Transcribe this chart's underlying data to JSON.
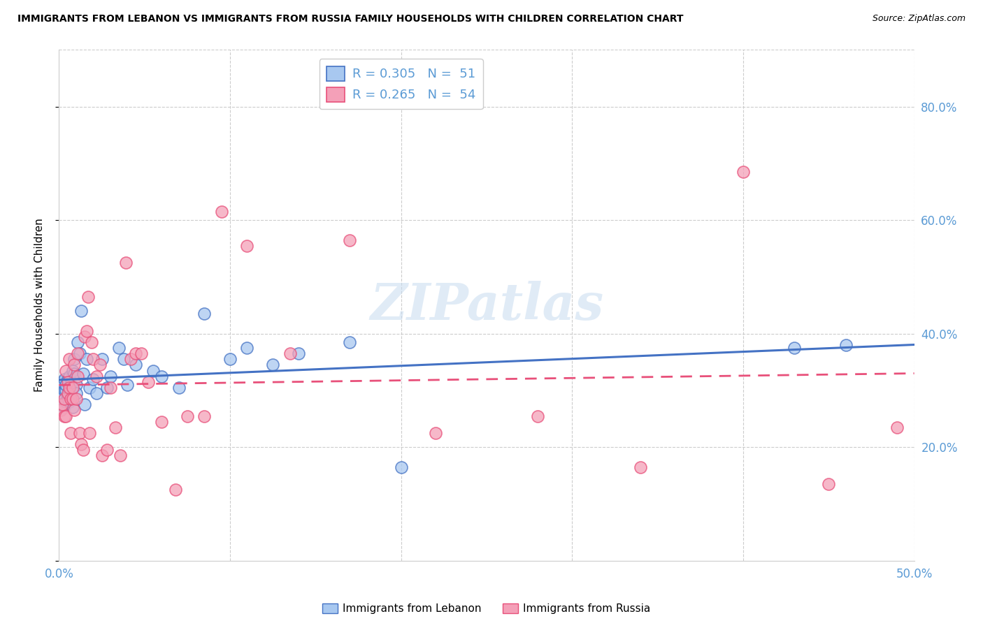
{
  "title": "IMMIGRANTS FROM LEBANON VS IMMIGRANTS FROM RUSSIA FAMILY HOUSEHOLDS WITH CHILDREN CORRELATION CHART",
  "source": "Source: ZipAtlas.com",
  "ylabel": "Family Households with Children",
  "xlim": [
    0.0,
    0.5
  ],
  "ylim": [
    0.0,
    0.9
  ],
  "xtick_positions": [
    0.0,
    0.1,
    0.2,
    0.3,
    0.4,
    0.5
  ],
  "xtick_labels": [
    "0.0%",
    "",
    "",
    "",
    "",
    "50.0%"
  ],
  "yticks_right": [
    0.8,
    0.6,
    0.4,
    0.2
  ],
  "ytick_labels_right": [
    "80.0%",
    "60.0%",
    "40.0%",
    "20.0%"
  ],
  "legend_r_lebanon": "R = 0.305",
  "legend_n_lebanon": "N =  51",
  "legend_r_russia": "R = 0.265",
  "legend_n_russia": "N =  54",
  "color_lebanon": "#A8C8F0",
  "color_russia": "#F4A0B8",
  "line_color_lebanon": "#4472C4",
  "line_color_russia": "#E8507A",
  "background_color": "#FFFFFF",
  "grid_color": "#CCCCCC",
  "axis_label_color": "#5B9BD5",
  "watermark_text": "ZIPatlas",
  "bottom_legend_lebanon": "Immigrants from Lebanon",
  "bottom_legend_russia": "Immigrants from Russia",
  "lebanon_x": [
    0.001,
    0.002,
    0.002,
    0.003,
    0.003,
    0.003,
    0.004,
    0.004,
    0.004,
    0.005,
    0.005,
    0.005,
    0.006,
    0.006,
    0.006,
    0.007,
    0.007,
    0.008,
    0.008,
    0.009,
    0.009,
    0.01,
    0.01,
    0.011,
    0.012,
    0.013,
    0.014,
    0.015,
    0.016,
    0.018,
    0.02,
    0.022,
    0.025,
    0.028,
    0.03,
    0.035,
    0.038,
    0.04,
    0.045,
    0.055,
    0.06,
    0.07,
    0.085,
    0.1,
    0.11,
    0.125,
    0.14,
    0.17,
    0.2,
    0.43,
    0.46
  ],
  "lebanon_y": [
    0.285,
    0.295,
    0.315,
    0.27,
    0.3,
    0.32,
    0.28,
    0.3,
    0.31,
    0.29,
    0.32,
    0.285,
    0.28,
    0.3,
    0.325,
    0.295,
    0.31,
    0.27,
    0.335,
    0.355,
    0.33,
    0.31,
    0.295,
    0.385,
    0.365,
    0.44,
    0.33,
    0.275,
    0.355,
    0.305,
    0.32,
    0.295,
    0.355,
    0.305,
    0.325,
    0.375,
    0.355,
    0.31,
    0.345,
    0.335,
    0.325,
    0.305,
    0.435,
    0.355,
    0.375,
    0.345,
    0.365,
    0.385,
    0.165,
    0.375,
    0.38
  ],
  "russia_x": [
    0.001,
    0.002,
    0.003,
    0.003,
    0.004,
    0.004,
    0.005,
    0.005,
    0.006,
    0.006,
    0.007,
    0.007,
    0.008,
    0.008,
    0.009,
    0.009,
    0.01,
    0.011,
    0.011,
    0.012,
    0.013,
    0.014,
    0.015,
    0.016,
    0.017,
    0.018,
    0.019,
    0.02,
    0.022,
    0.024,
    0.025,
    0.028,
    0.03,
    0.033,
    0.036,
    0.039,
    0.042,
    0.045,
    0.048,
    0.052,
    0.06,
    0.068,
    0.075,
    0.085,
    0.095,
    0.11,
    0.135,
    0.17,
    0.22,
    0.28,
    0.34,
    0.4,
    0.45,
    0.49
  ],
  "russia_y": [
    0.265,
    0.275,
    0.255,
    0.285,
    0.255,
    0.335,
    0.295,
    0.315,
    0.305,
    0.355,
    0.285,
    0.225,
    0.285,
    0.305,
    0.345,
    0.265,
    0.285,
    0.325,
    0.365,
    0.225,
    0.205,
    0.195,
    0.395,
    0.405,
    0.465,
    0.225,
    0.385,
    0.355,
    0.325,
    0.345,
    0.185,
    0.195,
    0.305,
    0.235,
    0.185,
    0.525,
    0.355,
    0.365,
    0.365,
    0.315,
    0.245,
    0.125,
    0.255,
    0.255,
    0.615,
    0.555,
    0.365,
    0.565,
    0.225,
    0.255,
    0.165,
    0.685,
    0.135,
    0.235
  ]
}
